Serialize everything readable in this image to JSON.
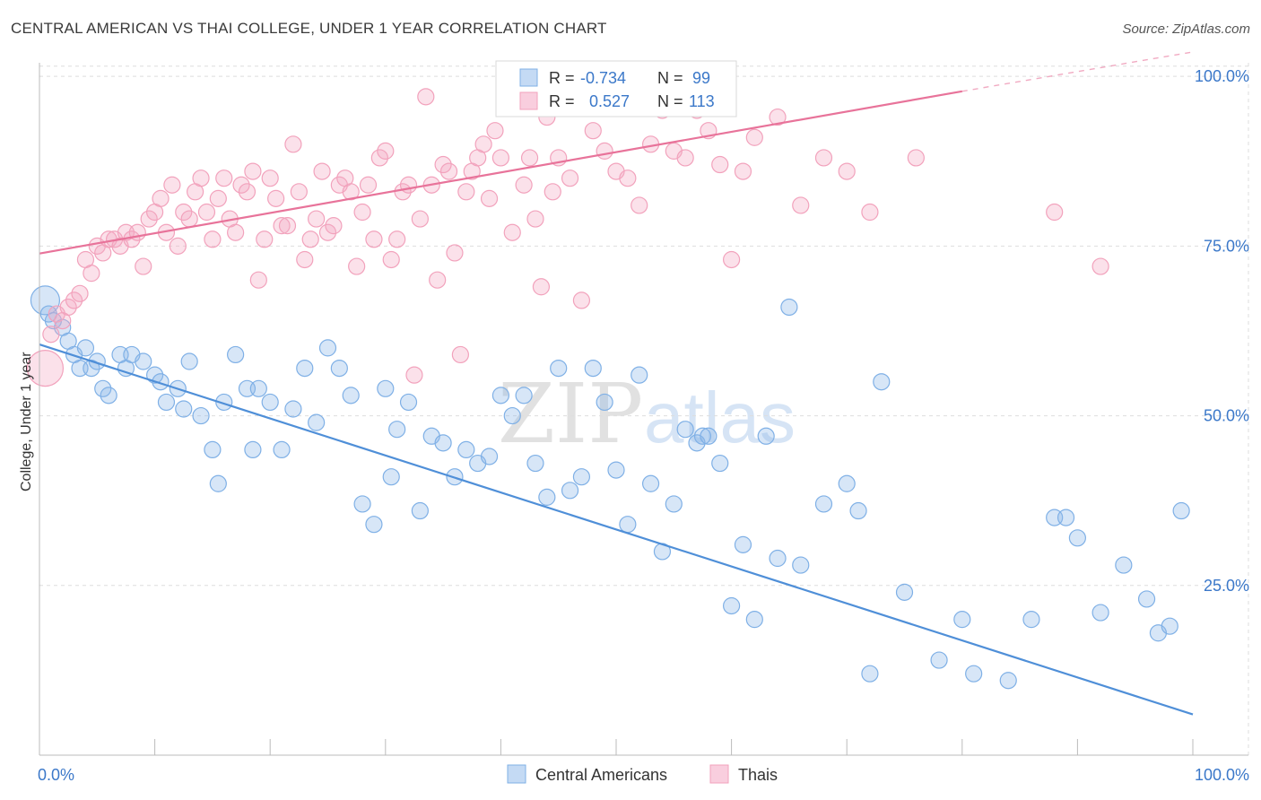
{
  "title": "CENTRAL AMERICAN VS THAI COLLEGE, UNDER 1 YEAR CORRELATION CHART",
  "source": "Source: ZipAtlas.com",
  "watermark": {
    "zip": "ZIP",
    "atlas": "atlas"
  },
  "legend_top": [
    {
      "r_label": "R =",
      "r_value": "-0.734",
      "n_label": "N =",
      "n_value": "99",
      "color": "#7fb0e6"
    },
    {
      "r_label": "R =",
      "r_value": " 0.527",
      "n_label": "N =",
      "n_value": "113",
      "color": "#f2a2bc"
    }
  ],
  "legend_bottom": [
    {
      "label": "Central Americans",
      "color": "#7fb0e6"
    },
    {
      "label": "Thais",
      "color": "#f2a2bc"
    }
  ],
  "chart_data": {
    "type": "scatter",
    "title": "CENTRAL AMERICAN VS THAI COLLEGE, UNDER 1 YEAR CORRELATION CHART",
    "xlabel": "",
    "ylabel": "College, Under 1 year",
    "xlim": [
      0,
      100
    ],
    "ylim": [
      0,
      102
    ],
    "x_tick_labels": [
      "0.0%",
      "100.0%"
    ],
    "y_ticks": [
      25,
      50,
      75,
      100
    ],
    "y_tick_labels": [
      "25.0%",
      "50.0%",
      "75.0%",
      "100.0%"
    ],
    "series": [
      {
        "name": "Central Americans",
        "color": "#4f8fd8",
        "r": -0.734,
        "n": 99,
        "trend": {
          "x0": 0,
          "y0": 60.5,
          "x1": 100,
          "y1": 6.0
        },
        "points": [
          [
            0.5,
            67
          ],
          [
            0.8,
            65
          ],
          [
            1.2,
            64
          ],
          [
            2.0,
            63
          ],
          [
            2.5,
            61
          ],
          [
            3.0,
            59
          ],
          [
            3.5,
            57
          ],
          [
            4.0,
            60
          ],
          [
            4.5,
            57
          ],
          [
            5.0,
            58
          ],
          [
            5.5,
            54
          ],
          [
            6.0,
            53
          ],
          [
            7.0,
            59
          ],
          [
            7.5,
            57
          ],
          [
            8.0,
            59
          ],
          [
            9.0,
            58
          ],
          [
            10.0,
            56
          ],
          [
            10.5,
            55
          ],
          [
            11.0,
            52
          ],
          [
            12.0,
            54
          ],
          [
            12.5,
            51
          ],
          [
            13.0,
            58
          ],
          [
            14.0,
            50
          ],
          [
            15.0,
            45
          ],
          [
            15.5,
            40
          ],
          [
            16.0,
            52
          ],
          [
            17.0,
            59
          ],
          [
            18.0,
            54
          ],
          [
            18.5,
            45
          ],
          [
            19.0,
            54
          ],
          [
            20.0,
            52
          ],
          [
            21.0,
            45
          ],
          [
            22.0,
            51
          ],
          [
            23.0,
            57
          ],
          [
            24.0,
            49
          ],
          [
            25.0,
            60
          ],
          [
            26.0,
            57
          ],
          [
            27.0,
            53
          ],
          [
            28.0,
            37
          ],
          [
            29.0,
            34
          ],
          [
            30.0,
            54
          ],
          [
            30.5,
            41
          ],
          [
            31.0,
            48
          ],
          [
            32.0,
            52
          ],
          [
            33.0,
            36
          ],
          [
            34.0,
            47
          ],
          [
            35.0,
            46
          ],
          [
            36.0,
            41
          ],
          [
            37.0,
            45
          ],
          [
            38.0,
            43
          ],
          [
            39.0,
            44
          ],
          [
            40.0,
            53
          ],
          [
            41.0,
            50
          ],
          [
            42.0,
            53
          ],
          [
            43.0,
            43
          ],
          [
            44.0,
            38
          ],
          [
            45.0,
            57
          ],
          [
            46.0,
            39
          ],
          [
            47.0,
            41
          ],
          [
            48.0,
            57
          ],
          [
            49.0,
            52
          ],
          [
            50.0,
            42
          ],
          [
            51.0,
            34
          ],
          [
            52.0,
            56
          ],
          [
            53.0,
            40
          ],
          [
            54.0,
            30
          ],
          [
            55.0,
            37
          ],
          [
            56.0,
            48
          ],
          [
            57.0,
            46
          ],
          [
            57.5,
            47
          ],
          [
            58.0,
            47
          ],
          [
            59.0,
            43
          ],
          [
            60.0,
            22
          ],
          [
            61.0,
            31
          ],
          [
            62.0,
            20
          ],
          [
            63.0,
            47
          ],
          [
            64.0,
            29
          ],
          [
            65.0,
            66
          ],
          [
            66.0,
            28
          ],
          [
            68.0,
            37
          ],
          [
            70.0,
            40
          ],
          [
            72.0,
            12
          ],
          [
            73.0,
            55
          ],
          [
            75.0,
            24
          ],
          [
            78.0,
            14
          ],
          [
            81.0,
            12
          ],
          [
            84.0,
            11
          ],
          [
            86.0,
            20
          ],
          [
            88.0,
            35
          ],
          [
            89.0,
            35
          ],
          [
            90.0,
            32
          ],
          [
            92.0,
            21
          ],
          [
            94.0,
            28
          ],
          [
            96.0,
            23
          ],
          [
            97.0,
            18
          ],
          [
            98.0,
            19
          ],
          [
            99.0,
            36
          ],
          [
            71.0,
            36
          ],
          [
            80.0,
            20
          ]
        ]
      },
      {
        "name": "Thais",
        "color": "#e8739a",
        "r": 0.527,
        "n": 113,
        "trend": {
          "x0": 0,
          "y0": 73.9,
          "x1": 80,
          "y1": 97.8,
          "dash_x1": 100,
          "dash_y1": 103.6
        },
        "points": [
          [
            0.5,
            57
          ],
          [
            1.0,
            62
          ],
          [
            1.5,
            65
          ],
          [
            2.0,
            64
          ],
          [
            2.5,
            66
          ],
          [
            3.0,
            67
          ],
          [
            3.5,
            68
          ],
          [
            4.0,
            73
          ],
          [
            4.5,
            71
          ],
          [
            5.0,
            75
          ],
          [
            5.5,
            74
          ],
          [
            6.0,
            76
          ],
          [
            6.5,
            76
          ],
          [
            7.0,
            75
          ],
          [
            7.5,
            77
          ],
          [
            8.0,
            76
          ],
          [
            8.5,
            77
          ],
          [
            9.0,
            72
          ],
          [
            9.5,
            79
          ],
          [
            10.0,
            80
          ],
          [
            10.5,
            82
          ],
          [
            11.0,
            77
          ],
          [
            11.5,
            84
          ],
          [
            12.0,
            75
          ],
          [
            12.5,
            80
          ],
          [
            13.0,
            79
          ],
          [
            13.5,
            83
          ],
          [
            14.0,
            85
          ],
          [
            14.5,
            80
          ],
          [
            15.0,
            76
          ],
          [
            15.5,
            82
          ],
          [
            16.0,
            85
          ],
          [
            16.5,
            79
          ],
          [
            17.0,
            77
          ],
          [
            17.5,
            84
          ],
          [
            18.0,
            83
          ],
          [
            18.5,
            86
          ],
          [
            19.0,
            70
          ],
          [
            19.5,
            76
          ],
          [
            20.0,
            85
          ],
          [
            20.5,
            82
          ],
          [
            21.0,
            78
          ],
          [
            21.5,
            78
          ],
          [
            22.0,
            90
          ],
          [
            22.5,
            83
          ],
          [
            23.0,
            73
          ],
          [
            23.5,
            76
          ],
          [
            24.0,
            79
          ],
          [
            24.5,
            86
          ],
          [
            25.0,
            77
          ],
          [
            25.5,
            78
          ],
          [
            26.0,
            84
          ],
          [
            26.5,
            85
          ],
          [
            27.0,
            83
          ],
          [
            27.5,
            72
          ],
          [
            28.0,
            80
          ],
          [
            28.5,
            84
          ],
          [
            29.0,
            76
          ],
          [
            29.5,
            88
          ],
          [
            30.0,
            89
          ],
          [
            30.5,
            73
          ],
          [
            31.0,
            76
          ],
          [
            31.5,
            83
          ],
          [
            32.0,
            84
          ],
          [
            32.5,
            56
          ],
          [
            33.0,
            79
          ],
          [
            33.5,
            97
          ],
          [
            34.0,
            84
          ],
          [
            34.5,
            70
          ],
          [
            35.0,
            87
          ],
          [
            35.5,
            86
          ],
          [
            36.0,
            74
          ],
          [
            36.5,
            59
          ],
          [
            37.0,
            83
          ],
          [
            37.5,
            86
          ],
          [
            38.0,
            88
          ],
          [
            38.5,
            90
          ],
          [
            39.0,
            82
          ],
          [
            39.5,
            92
          ],
          [
            40.0,
            88
          ],
          [
            41.0,
            77
          ],
          [
            42.0,
            84
          ],
          [
            42.5,
            88
          ],
          [
            43.0,
            79
          ],
          [
            43.5,
            69
          ],
          [
            44.0,
            94
          ],
          [
            44.5,
            83
          ],
          [
            45.0,
            88
          ],
          [
            46.0,
            85
          ],
          [
            47.0,
            67
          ],
          [
            48.0,
            92
          ],
          [
            49.0,
            89
          ],
          [
            50.0,
            86
          ],
          [
            51.0,
            85
          ],
          [
            52.0,
            81
          ],
          [
            53.0,
            90
          ],
          [
            54.0,
            95
          ],
          [
            55.0,
            89
          ],
          [
            56.0,
            88
          ],
          [
            57.0,
            95
          ],
          [
            58.0,
            92
          ],
          [
            59.0,
            87
          ],
          [
            60.0,
            73
          ],
          [
            61.0,
            86
          ],
          [
            62.0,
            91
          ],
          [
            64.0,
            94
          ],
          [
            66.0,
            81
          ],
          [
            68.0,
            88
          ],
          [
            70.0,
            86
          ],
          [
            72.0,
            80
          ],
          [
            76.0,
            88
          ],
          [
            88.0,
            80
          ],
          [
            92.0,
            72
          ]
        ]
      }
    ]
  }
}
